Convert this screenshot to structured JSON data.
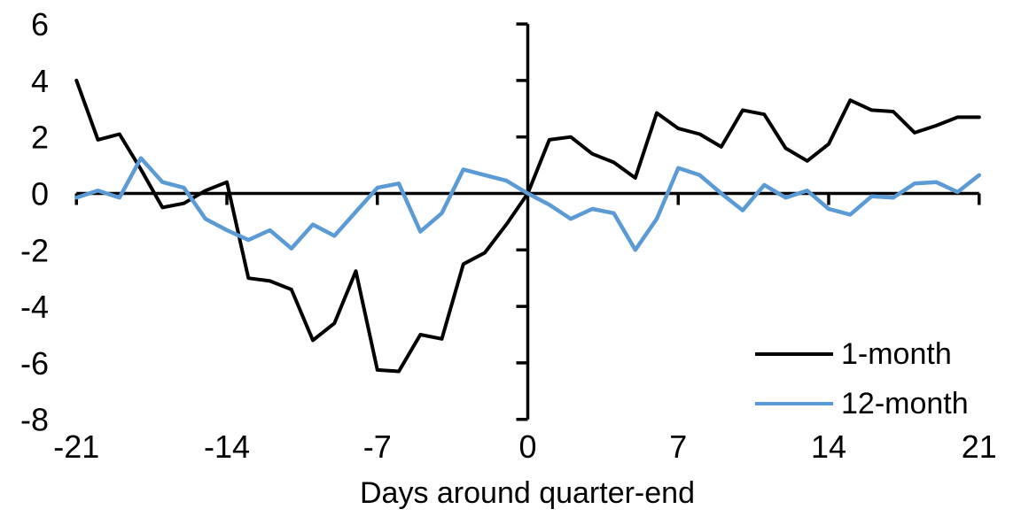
{
  "chart_data": {
    "type": "line",
    "title": "",
    "xlabel": "Days around quarter-end",
    "ylabel": "",
    "xlim": [
      -21,
      21
    ],
    "ylim": [
      -8,
      6
    ],
    "x_ticks": [
      -21,
      -14,
      -7,
      0,
      7,
      14,
      21
    ],
    "y_ticks": [
      6,
      4,
      2,
      0,
      -2,
      -4,
      -6,
      -8
    ],
    "grid": false,
    "legend_position": "inside-bottom-right",
    "axis_color": "#000000",
    "x": [
      -21,
      -20,
      -19,
      -18,
      -17,
      -16,
      -15,
      -14,
      -13,
      -12,
      -11,
      -10,
      -9,
      -8,
      -7,
      -6,
      -5,
      -4,
      -3,
      -2,
      -1,
      0,
      1,
      2,
      3,
      4,
      5,
      6,
      7,
      8,
      9,
      10,
      11,
      12,
      13,
      14,
      15,
      16,
      17,
      18,
      19,
      20,
      21
    ],
    "series": [
      {
        "name": "1-month",
        "color": "#000000",
        "values": [
          4.0,
          1.9,
          2.1,
          0.85,
          -0.5,
          -0.35,
          0.1,
          0.4,
          -3.0,
          -3.1,
          -3.4,
          -5.2,
          -4.6,
          -2.75,
          -6.25,
          -6.3,
          -5.0,
          -5.15,
          -2.5,
          -2.1,
          -1.1,
          0.0,
          1.9,
          2.0,
          1.4,
          1.1,
          0.55,
          2.85,
          2.3,
          2.1,
          1.65,
          2.95,
          2.8,
          1.6,
          1.15,
          1.75,
          3.3,
          2.95,
          2.9,
          2.15,
          2.4,
          2.7,
          2.7
        ]
      },
      {
        "name": "12-month",
        "color": "#5B9BD5",
        "values": [
          -0.15,
          0.1,
          -0.15,
          1.25,
          0.4,
          0.2,
          -0.9,
          -1.3,
          -1.65,
          -1.3,
          -1.95,
          -1.1,
          -1.5,
          -0.65,
          0.2,
          0.35,
          -1.35,
          -0.7,
          0.85,
          0.65,
          0.45,
          0.0,
          -0.4,
          -0.9,
          -0.55,
          -0.7,
          -2.0,
          -0.9,
          0.9,
          0.65,
          0.0,
          -0.6,
          0.3,
          -0.15,
          0.1,
          -0.55,
          -0.75,
          -0.1,
          -0.15,
          0.35,
          0.4,
          0.05,
          0.65
        ]
      }
    ]
  }
}
